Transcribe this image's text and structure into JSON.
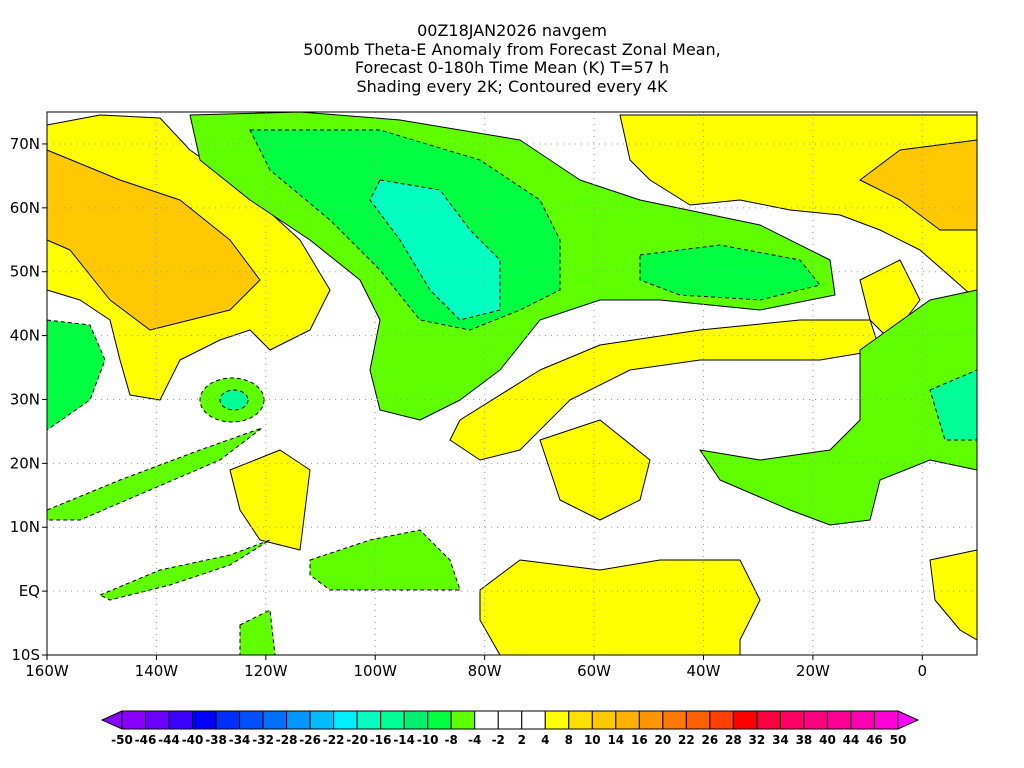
{
  "title": {
    "line1": "00Z18JAN2026 navgem",
    "line2": "500mb Theta-E Anomaly from Forecast Zonal Mean,",
    "line3": "Forecast 0-180h Time Mean (K) T=57 h",
    "line4": "Shading every 2K; Contoured every 4K"
  },
  "axes": {
    "lon_labels": [
      "160W",
      "140W",
      "120W",
      "100W",
      "80W",
      "60W",
      "40W",
      "20W",
      "0"
    ],
    "lon_values": [
      -160,
      -140,
      -120,
      -100,
      -80,
      -60,
      -40,
      -20,
      0
    ],
    "lat_labels": [
      "70N",
      "60N",
      "50N",
      "40N",
      "30N",
      "20N",
      "10N",
      "EQ",
      "10S"
    ],
    "lat_values": [
      70,
      60,
      50,
      40,
      30,
      20,
      10,
      0,
      -10
    ],
    "lon_range": [
      -160,
      10
    ],
    "lat_range": [
      -10,
      75
    ]
  },
  "colorbar": {
    "labels": [
      "-50",
      "-46",
      "-44",
      "-40",
      "-38",
      "-34",
      "-32",
      "-28",
      "-26",
      "-22",
      "-20",
      "-16",
      "-14",
      "-10",
      "-8",
      "-4",
      "-2",
      "2",
      "4",
      "8",
      "10",
      "14",
      "16",
      "20",
      "22",
      "26",
      "28",
      "32",
      "34",
      "38",
      "40",
      "44",
      "46",
      "50"
    ],
    "colors": [
      "#8a00ff",
      "#6a00ff",
      "#3c00ff",
      "#0000ff",
      "#0030ff",
      "#0050ff",
      "#0070ff",
      "#0096ff",
      "#00beff",
      "#00f0ff",
      "#00ffc0",
      "#00ff96",
      "#00f070",
      "#00ff40",
      "#60ff00",
      "#ffffff",
      "#ffffff",
      "#ffffff",
      "#ffff00",
      "#ffe000",
      "#ffc800",
      "#ffb000",
      "#ff9600",
      "#ff7800",
      "#ff6000",
      "#ff4000",
      "#ff0000",
      "#ff0040",
      "#ff0064",
      "#ff0080",
      "#ff0096",
      "#ff00b4",
      "#ff00d8"
    ],
    "low_color": "#8a00ff",
    "high_color": "#ff00ff"
  }
}
